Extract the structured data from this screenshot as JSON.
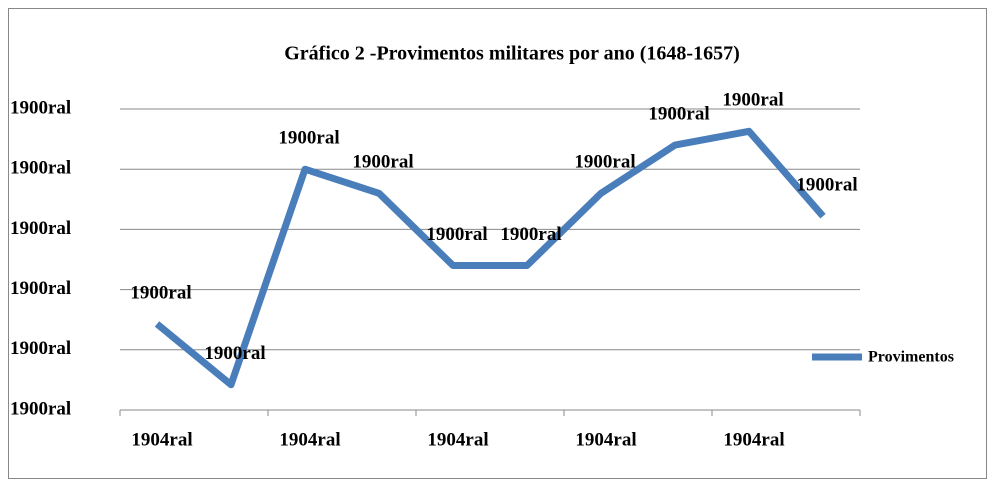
{
  "chart_data": {
    "type": "line",
    "title": "Gráfico 2 -Provimentos militares por ano  (1648-1657)",
    "categories": [
      "1904ral",
      null,
      "1904ral",
      null,
      "1904ral",
      null,
      "1904ral",
      null,
      "1904ral",
      null
    ],
    "series": [
      {
        "name": "Provimentos",
        "color": "#4a7ebb",
        "values": [
          1.43,
          0.42,
          4.0,
          3.6,
          2.4,
          2.4,
          3.6,
          4.4,
          4.63,
          3.22
        ],
        "value_labels": [
          "1900ral",
          "1900ral",
          "1900ral",
          "1900ral",
          "1900ral",
          "1900ral",
          "1900ral",
          "1900ral",
          "1900ral",
          "1900ral"
        ]
      }
    ],
    "ylim": [
      0,
      5
    ],
    "yticks": [
      {
        "value": 0,
        "label": "1900ral"
      },
      {
        "value": 1,
        "label": "1900ral"
      },
      {
        "value": 2,
        "label": "1900ral"
      },
      {
        "value": 3,
        "label": "1900ral"
      },
      {
        "value": 4,
        "label": "1900ral"
      },
      {
        "value": 5,
        "label": "1900ral"
      }
    ],
    "grid": true,
    "legend": "right"
  }
}
